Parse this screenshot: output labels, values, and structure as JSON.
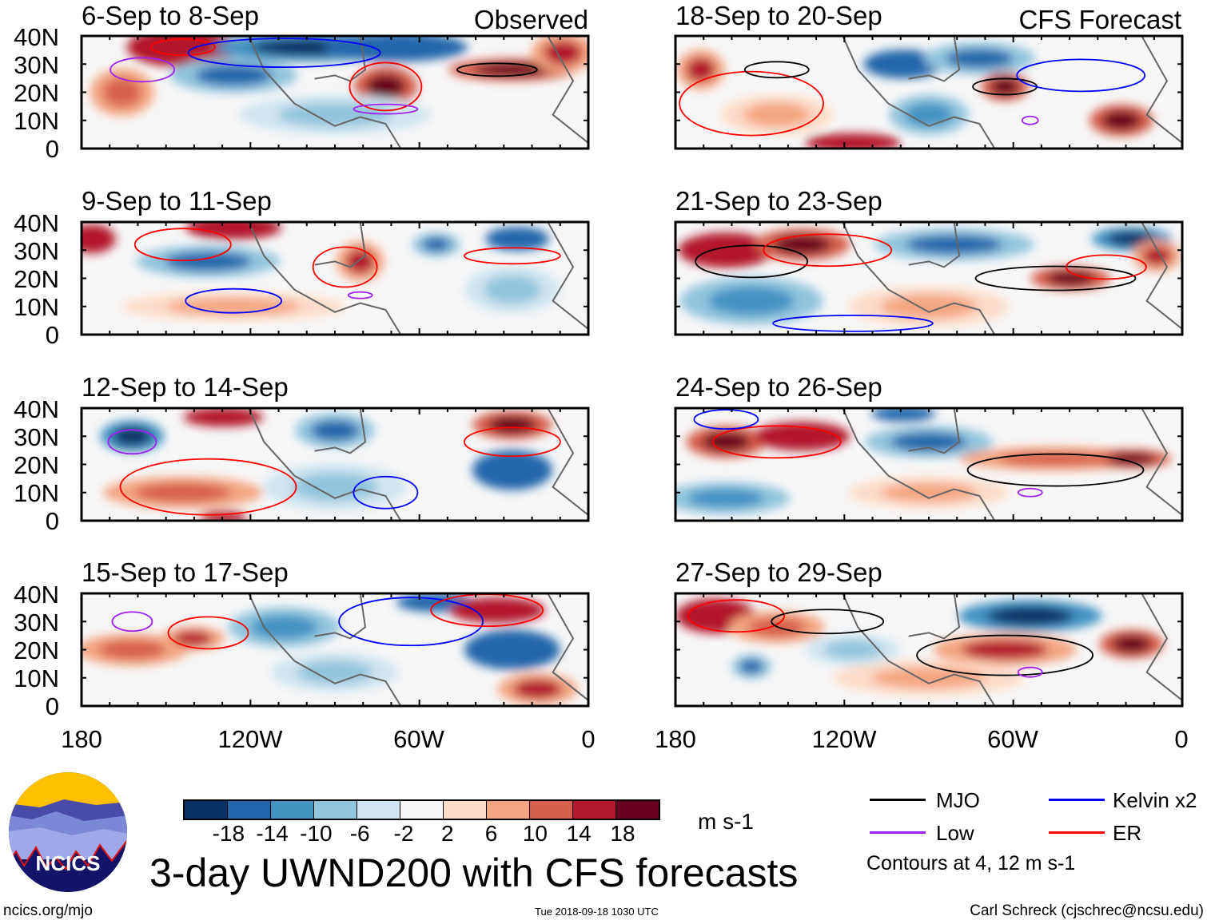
{
  "figure": {
    "title": "3-day UWND200 with CFS forecasts",
    "left_label": "Observed",
    "right_label": "CFS Forecast",
    "panels_left": [
      {
        "title": "6-Sep to 8-Sep"
      },
      {
        "title": "9-Sep to 11-Sep"
      },
      {
        "title": "12-Sep to 14-Sep"
      },
      {
        "title": "15-Sep to 17-Sep"
      }
    ],
    "panels_right": [
      {
        "title": "18-Sep to 20-Sep"
      },
      {
        "title": "21-Sep to 23-Sep"
      },
      {
        "title": "24-Sep to 26-Sep"
      },
      {
        "title": "27-Sep to 29-Sep"
      }
    ],
    "lat_labels": [
      "40N",
      "30N",
      "20N",
      "10N",
      "0"
    ],
    "lon_labels": [
      "180",
      "120W",
      "60W",
      "0"
    ]
  },
  "colorbar": {
    "colors": [
      "#0a3163",
      "#2166ac",
      "#4393c3",
      "#92c5de",
      "#d1e5f0",
      "#f7f7f7",
      "#fddbc7",
      "#f4a582",
      "#d6604d",
      "#b2182b",
      "#67001f"
    ],
    "labels": [
      "-18",
      "-14",
      "-10",
      "-6",
      "-2",
      "2",
      "6",
      "10",
      "14",
      "18"
    ],
    "units": "m s-1"
  },
  "legend": {
    "items": [
      {
        "label": "MJO",
        "color": "#000000"
      },
      {
        "label": "Kelvin x2",
        "color": "#0000ff"
      },
      {
        "label": "Low",
        "color": "#a020f0"
      },
      {
        "label": "ER",
        "color": "#ff0000"
      }
    ],
    "contours_note": "Contours at 4, 12 m s-1"
  },
  "logo": {
    "text": "NCICS"
  },
  "footer": {
    "url": "ncics.org/mjo",
    "timestamp": "Tue 2018-09-18 1030 UTC",
    "credit": "Carl Schreck (cjschrec@ncsu.edu)"
  }
}
